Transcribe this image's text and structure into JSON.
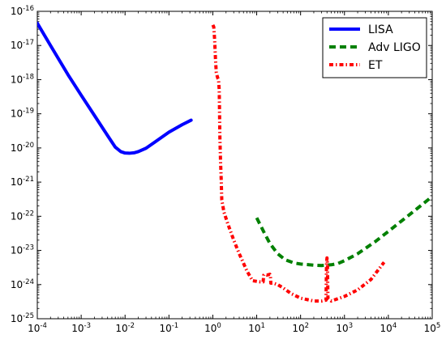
{
  "chart_data": {
    "type": "line",
    "title": "",
    "xlabel": "",
    "ylabel": "",
    "xscale": "log",
    "yscale": "log",
    "xlim": [
      0.0001,
      100000
    ],
    "ylim": [
      1e-25,
      1e-16
    ],
    "grid": false,
    "legend_position": "top-right",
    "x_ticks": [
      {
        "base": "10",
        "exp": "-4",
        "value": 0.0001
      },
      {
        "base": "10",
        "exp": "-3",
        "value": 0.001
      },
      {
        "base": "10",
        "exp": "-2",
        "value": 0.01
      },
      {
        "base": "10",
        "exp": "-1",
        "value": 0.1
      },
      {
        "base": "10",
        "exp": "0",
        "value": 1
      },
      {
        "base": "10",
        "exp": "1",
        "value": 10
      },
      {
        "base": "10",
        "exp": "2",
        "value": 100
      },
      {
        "base": "10",
        "exp": "3",
        "value": 1000
      },
      {
        "base": "10",
        "exp": "4",
        "value": 10000
      },
      {
        "base": "10",
        "exp": "5",
        "value": 100000
      }
    ],
    "y_ticks": [
      {
        "base": "10",
        "exp": "-25",
        "value": 1e-25
      },
      {
        "base": "10",
        "exp": "-24",
        "value": 1e-24
      },
      {
        "base": "10",
        "exp": "-23",
        "value": 1e-23
      },
      {
        "base": "10",
        "exp": "-22",
        "value": 1e-22
      },
      {
        "base": "10",
        "exp": "-21",
        "value": 1e-21
      },
      {
        "base": "10",
        "exp": "-20",
        "value": 1e-20
      },
      {
        "base": "10",
        "exp": "-19",
        "value": 1e-19
      },
      {
        "base": "10",
        "exp": "-18",
        "value": 1e-18
      },
      {
        "base": "10",
        "exp": "-17",
        "value": 1e-17
      },
      {
        "base": "10",
        "exp": "-16",
        "value": 1e-16
      }
    ],
    "series": [
      {
        "name": "LISA",
        "color": "#0000ff",
        "style": "solid",
        "x": [
          0.0001,
          0.0002,
          0.0005,
          0.001,
          0.002,
          0.004,
          0.006,
          0.008,
          0.01,
          0.0125,
          0.016,
          0.02,
          0.03,
          0.05,
          0.1,
          0.2,
          0.32
        ],
        "y": [
          4.5e-17,
          1e-17,
          1.4e-18,
          3.5e-19,
          9e-20,
          2.3e-20,
          1.05e-20,
          7.8e-21,
          7.1e-21,
          7e-21,
          7.2e-21,
          7.8e-21,
          9.8e-21,
          1.55e-20,
          2.9e-20,
          4.8e-20,
          6.5e-20
        ]
      },
      {
        "name": "Adv LIGO",
        "color": "#008000",
        "style": "dashed",
        "x": [
          10,
          15,
          20,
          30,
          45,
          70,
          100,
          200,
          300,
          500,
          700,
          1000,
          2000,
          5000,
          10000,
          30000,
          100000
        ],
        "y": [
          9e-23,
          3.2e-23,
          1.6e-23,
          8e-24,
          5.3e-24,
          4.3e-24,
          4e-24,
          3.7e-24,
          3.6e-24,
          3.8e-24,
          4.1e-24,
          5e-24,
          8e-24,
          1.8e-23,
          3.6e-23,
          1.1e-22,
          3.8e-22
        ]
      },
      {
        "name": "ET",
        "color": "#ff0000",
        "style": "dashdot",
        "x": [
          1.0,
          1.05,
          1.1,
          1.15,
          1.2,
          1.25,
          1.3,
          1.35,
          1.4,
          1.45,
          1.5,
          1.55,
          1.6,
          1.8,
          2.2,
          3,
          4,
          6,
          8,
          12,
          14,
          14.5,
          15,
          17,
          20,
          20.5,
          21,
          24,
          30,
          40,
          60,
          100,
          200,
          300,
          380,
          390,
          400,
          410,
          420,
          500,
          1000,
          2000,
          4000,
          8000
        ],
        "y": [
          4e-17,
          3.5e-17,
          1.5e-17,
          4e-18,
          1.6e-18,
          1.3e-18,
          1.1e-18,
          1e-18,
          5e-19,
          2e-20,
          4e-21,
          1.3e-21,
          3e-22,
          1.3e-22,
          6e-23,
          2e-23,
          8e-24,
          2.5e-24,
          1.3e-24,
          1.2e-24,
          1.2e-24,
          1.9e-24,
          2e-24,
          1.9e-24,
          2e-24,
          1.9e-24,
          1.1e-24,
          1.1e-24,
          1e-24,
          8e-25,
          5.5e-25,
          4e-25,
          3.3e-25,
          3.3e-25,
          3.5e-25,
          4e-24,
          6e-24,
          4e-24,
          4e-25,
          3.3e-25,
          4.5e-25,
          7e-25,
          1.4e-24,
          4.5e-24
        ]
      }
    ]
  }
}
